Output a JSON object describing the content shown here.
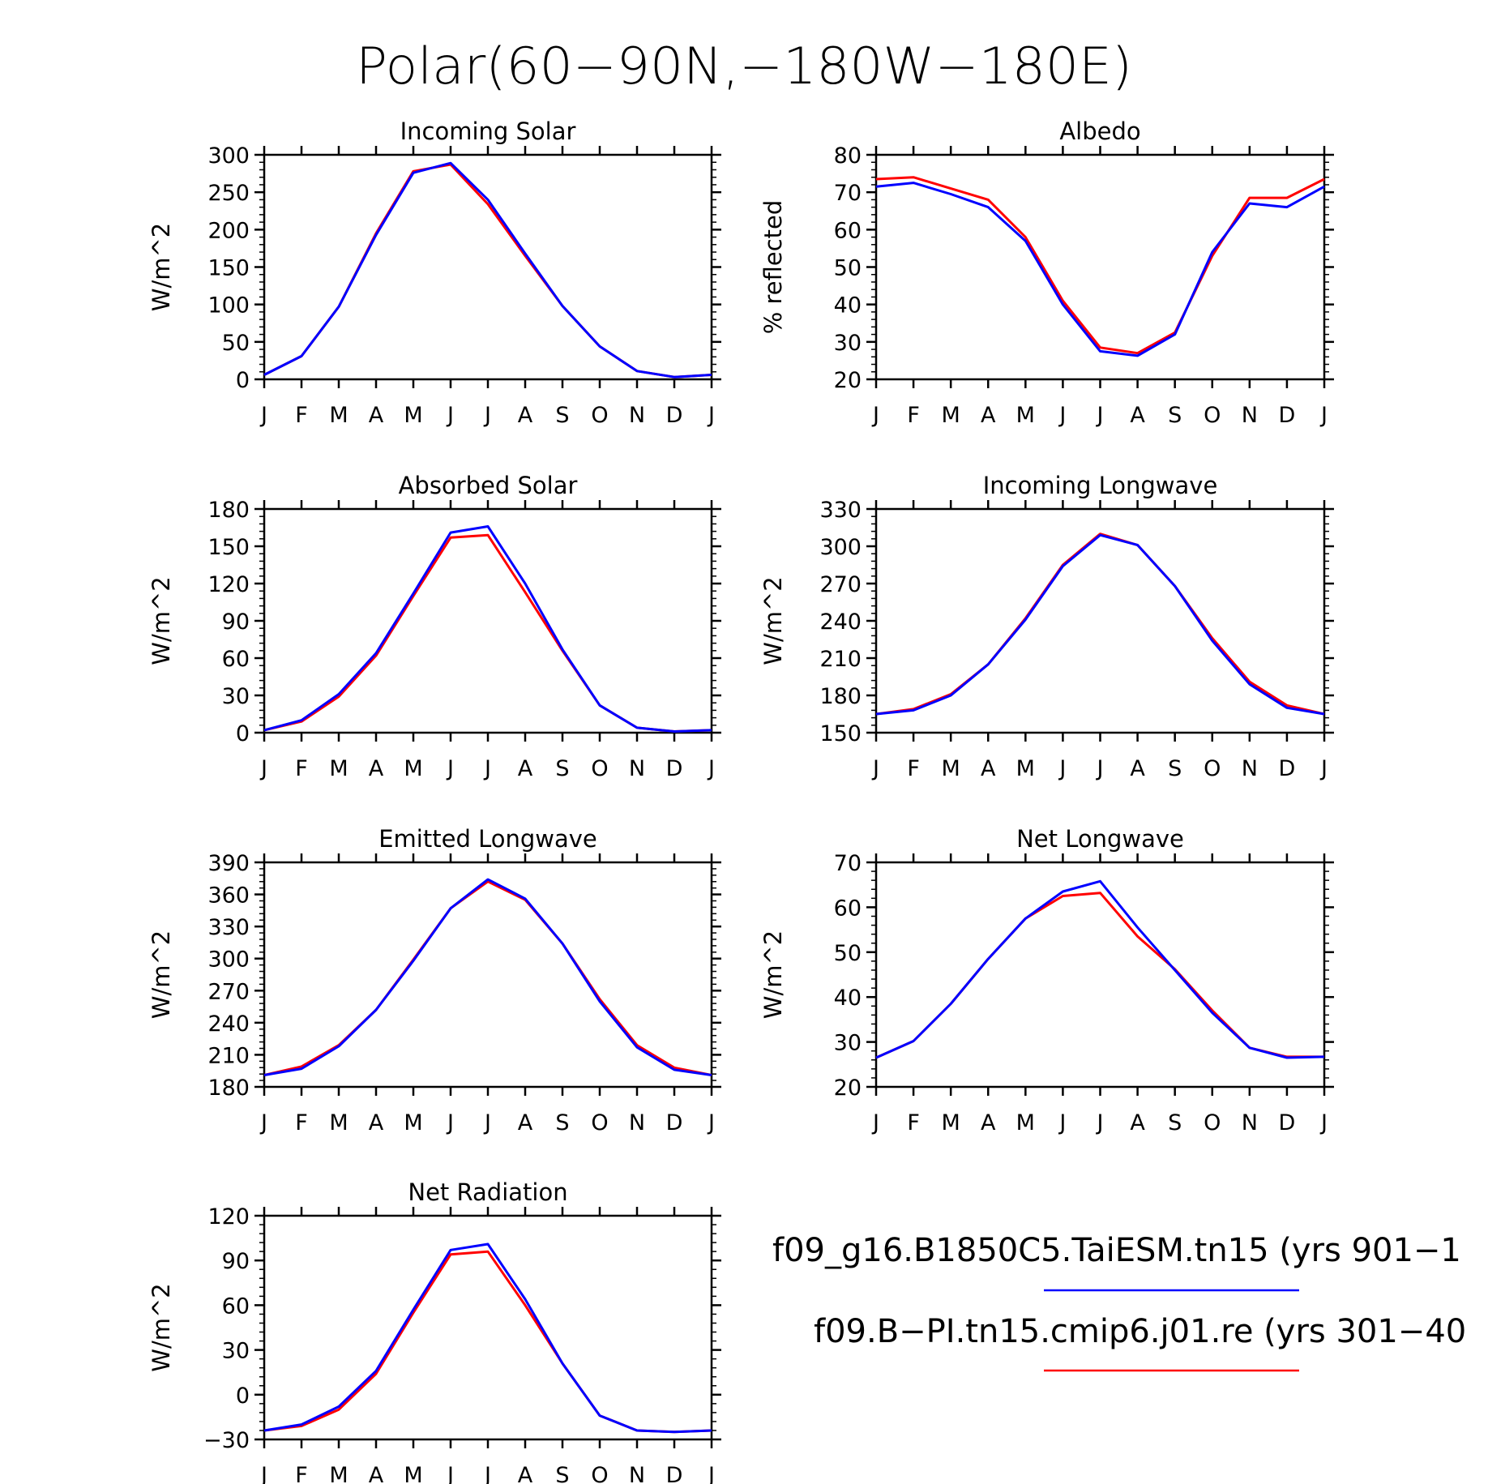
{
  "title": "Polar(60−90N,−180W−180E)",
  "months": [
    "J",
    "F",
    "M",
    "A",
    "M",
    "J",
    "J",
    "A",
    "S",
    "O",
    "N",
    "D",
    "J"
  ],
  "legend": [
    {
      "label": "f09_g16.B1850C5.TaiESM.tn15 (yrs 901−1",
      "color": "#0000ff"
    },
    {
      "label": "f09.B−PI.tn15.cmip6.j01.re (yrs 301−40",
      "color": "#ff0000"
    }
  ],
  "chart_data": [
    {
      "type": "line",
      "title": "Incoming Solar",
      "ylabel": "W/m^2",
      "ylim": [
        0,
        300
      ],
      "yticks": [
        0,
        50,
        100,
        150,
        200,
        250,
        300
      ],
      "series": [
        {
          "color": "#ff0000",
          "values": [
            6,
            31,
            97,
            195,
            278,
            287,
            234,
            165,
            98,
            44,
            11,
            3,
            6
          ]
        },
        {
          "color": "#0000ff",
          "values": [
            6,
            31,
            97,
            193,
            276,
            289,
            240,
            168,
            98,
            44,
            11,
            3,
            6
          ]
        }
      ]
    },
    {
      "type": "line",
      "title": "Albedo",
      "ylabel": "% reflected",
      "ylim": [
        20,
        80
      ],
      "yticks": [
        20,
        30,
        40,
        50,
        60,
        70,
        80
      ],
      "series": [
        {
          "color": "#ff0000",
          "values": [
            73.5,
            74,
            71,
            68,
            58,
            41,
            28.5,
            27,
            32.5,
            53,
            68.5,
            68.5,
            73.5
          ]
        },
        {
          "color": "#0000ff",
          "values": [
            71.5,
            72.5,
            69.5,
            66,
            57,
            40,
            27.5,
            26.3,
            32,
            54,
            67,
            66,
            71.5
          ]
        }
      ]
    },
    {
      "type": "line",
      "title": "Absorbed Solar",
      "ylabel": "W/m^2",
      "ylim": [
        0,
        180
      ],
      "yticks": [
        0,
        30,
        60,
        90,
        120,
        150,
        180
      ],
      "series": [
        {
          "color": "#ff0000",
          "values": [
            2,
            9,
            29,
            62,
            110,
            157,
            159,
            113,
            66,
            22,
            4,
            1,
            2
          ]
        },
        {
          "color": "#0000ff",
          "values": [
            2,
            10,
            31,
            64,
            112,
            161,
            166,
            120,
            67,
            22,
            4,
            1,
            2
          ]
        }
      ]
    },
    {
      "type": "line",
      "title": "Incoming Longwave",
      "ylabel": "W/m^2",
      "ylim": [
        150,
        330
      ],
      "yticks": [
        150,
        180,
        210,
        240,
        270,
        300,
        330
      ],
      "series": [
        {
          "color": "#ff0000",
          "values": [
            165,
            169,
            181,
            205,
            242,
            285,
            310,
            301,
            268,
            226,
            191,
            172,
            165
          ]
        },
        {
          "color": "#0000ff",
          "values": [
            165,
            168,
            180,
            205,
            241,
            284,
            309,
            301,
            268,
            224,
            189,
            170,
            165
          ]
        }
      ]
    },
    {
      "type": "line",
      "title": "Emitted Longwave",
      "ylabel": "W/m^2",
      "ylim": [
        180,
        390
      ],
      "yticks": [
        180,
        210,
        240,
        270,
        300,
        330,
        360,
        390
      ],
      "series": [
        {
          "color": "#ff0000",
          "values": [
            191,
            199,
            219,
            252,
            299,
            347,
            372,
            355,
            314,
            262,
            219,
            198,
            191
          ]
        },
        {
          "color": "#0000ff",
          "values": [
            191,
            197,
            218,
            252,
            298,
            347,
            374,
            356,
            314,
            260,
            217,
            196,
            191
          ]
        }
      ]
    },
    {
      "type": "line",
      "title": "Net Longwave",
      "ylabel": "W/m^2",
      "ylim": [
        20,
        70
      ],
      "yticks": [
        20,
        30,
        40,
        50,
        60,
        70
      ],
      "series": [
        {
          "color": "#ff0000",
          "values": [
            26.5,
            30.2,
            38.5,
            48.5,
            57.5,
            62.5,
            63.2,
            53.5,
            46.2,
            37,
            28.7,
            26.7,
            26.7
          ]
        },
        {
          "color": "#0000ff",
          "values": [
            26.5,
            30.2,
            38.5,
            48.5,
            57.5,
            63.5,
            65.8,
            55.5,
            46,
            36.5,
            28.7,
            26.5,
            26.7
          ]
        }
      ]
    },
    {
      "type": "line",
      "title": "Net Radiation",
      "ylabel": "W/m^2",
      "ylim": [
        -30,
        120
      ],
      "yticks": [
        -30,
        0,
        30,
        60,
        90,
        120
      ],
      "series": [
        {
          "color": "#ff0000",
          "values": [
            -24,
            -21,
            -10,
            14,
            55,
            94,
            96,
            60,
            21,
            -14,
            -24,
            -25,
            -24
          ]
        },
        {
          "color": "#0000ff",
          "values": [
            -24,
            -20,
            -8,
            16,
            57,
            97,
            101,
            64,
            21,
            -14,
            -24,
            -25,
            -24
          ]
        }
      ]
    }
  ]
}
